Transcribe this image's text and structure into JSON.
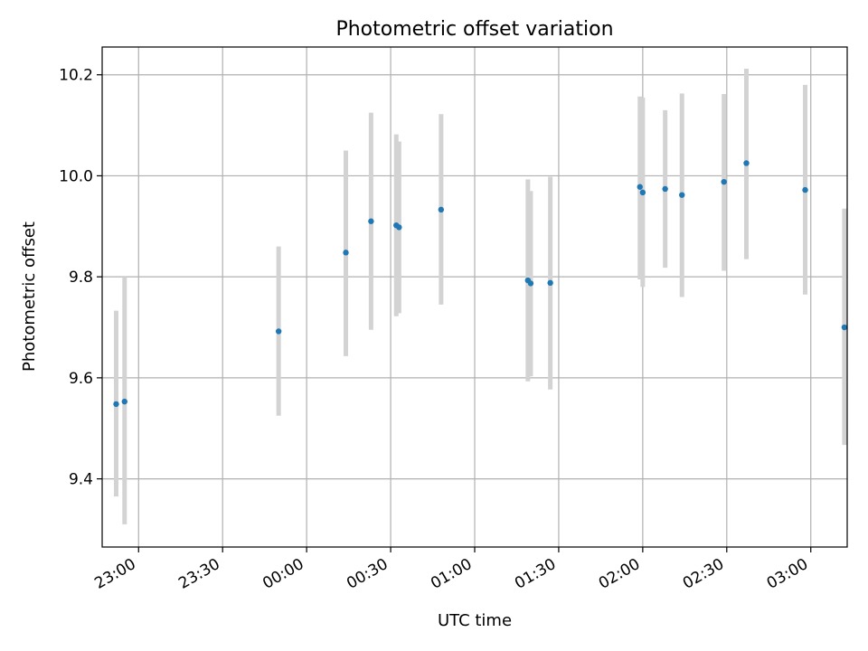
{
  "chart_data": {
    "type": "scatter",
    "title": "Photometric offset variation",
    "xlabel": "UTC time",
    "ylabel": "Photometric offset",
    "x_axis_kind": "time",
    "xlim": [
      "22:47",
      "03:13"
    ],
    "ylim": [
      9.265,
      10.255
    ],
    "x_ticks": [
      "23:00",
      "23:30",
      "00:00",
      "00:30",
      "01:00",
      "01:30",
      "02:00",
      "02:30",
      "03:00"
    ],
    "y_ticks": [
      "9.4",
      "9.6",
      "9.8",
      "10.0",
      "10.2"
    ],
    "grid": true,
    "legend": "none",
    "point_color": "#1f77b4",
    "errorbar_color": "#d3d3d3",
    "points": [
      {
        "x": "22:52",
        "y": 9.548,
        "ylow": 9.365,
        "yhigh": 9.733
      },
      {
        "x": "22:55",
        "y": 9.553,
        "ylow": 9.31,
        "yhigh": 9.8
      },
      {
        "x": "23:50",
        "y": 9.692,
        "ylow": 9.525,
        "yhigh": 9.86
      },
      {
        "x": "00:14",
        "y": 9.848,
        "ylow": 9.643,
        "yhigh": 10.05
      },
      {
        "x": "00:23",
        "y": 9.91,
        "ylow": 9.695,
        "yhigh": 10.125
      },
      {
        "x": "00:32",
        "y": 9.902,
        "ylow": 9.722,
        "yhigh": 10.082
      },
      {
        "x": "00:33",
        "y": 9.898,
        "ylow": 9.728,
        "yhigh": 10.068
      },
      {
        "x": "00:48",
        "y": 9.933,
        "ylow": 9.745,
        "yhigh": 10.122
      },
      {
        "x": "01:19",
        "y": 9.793,
        "ylow": 9.593,
        "yhigh": 9.993
      },
      {
        "x": "01:20",
        "y": 9.787,
        "ylow": 9.603,
        "yhigh": 9.97
      },
      {
        "x": "01:27",
        "y": 9.788,
        "ylow": 9.577,
        "yhigh": 9.998
      },
      {
        "x": "01:59",
        "y": 9.978,
        "ylow": 9.795,
        "yhigh": 10.157
      },
      {
        "x": "02:00",
        "y": 9.967,
        "ylow": 9.78,
        "yhigh": 10.155
      },
      {
        "x": "02:08",
        "y": 9.974,
        "ylow": 9.818,
        "yhigh": 10.13
      },
      {
        "x": "02:14",
        "y": 9.962,
        "ylow": 9.76,
        "yhigh": 10.163
      },
      {
        "x": "02:29",
        "y": 9.988,
        "ylow": 9.812,
        "yhigh": 10.162
      },
      {
        "x": "02:37",
        "y": 10.025,
        "ylow": 9.835,
        "yhigh": 10.212
      },
      {
        "x": "02:58",
        "y": 9.972,
        "ylow": 9.765,
        "yhigh": 10.18
      },
      {
        "x": "03:12",
        "y": 9.7,
        "ylow": 9.467,
        "yhigh": 9.935
      }
    ]
  }
}
